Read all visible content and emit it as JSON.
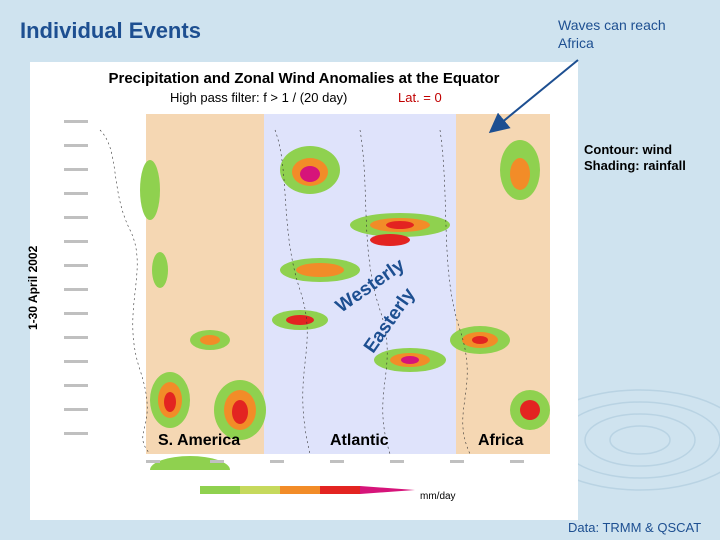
{
  "slide": {
    "title": "Individual Events",
    "callout": "Waves can reach Africa",
    "credit": "Data: TRMM & QSCAT"
  },
  "figure": {
    "title": "Precipitation and Zonal Wind Anomalies at the Equator",
    "subtitle": "High pass filter: f > 1 / (20 day)",
    "lat_label": "Lat. = 0",
    "ylabel": "1-30 April 2002",
    "legend_line1": "Contour: wind",
    "legend_line2": "Shading: rainfall",
    "regions": {
      "south_america": "S. America",
      "atlantic": "Atlantic",
      "africa": "Africa"
    },
    "wind_labels": {
      "westerly": "Westerly",
      "easterly": "Easterly"
    },
    "colorbar_unit": "mm/day",
    "colors": {
      "title": "#1d4f91",
      "land_shade": "#f5d7b3",
      "ocean_shade": "#dfe3fb",
      "rain_light": "#8fd14f",
      "rain_mid": "#c6d95c",
      "rain_orange": "#f28c28",
      "rain_red": "#e32421",
      "rain_magenta": "#d6147a"
    }
  }
}
